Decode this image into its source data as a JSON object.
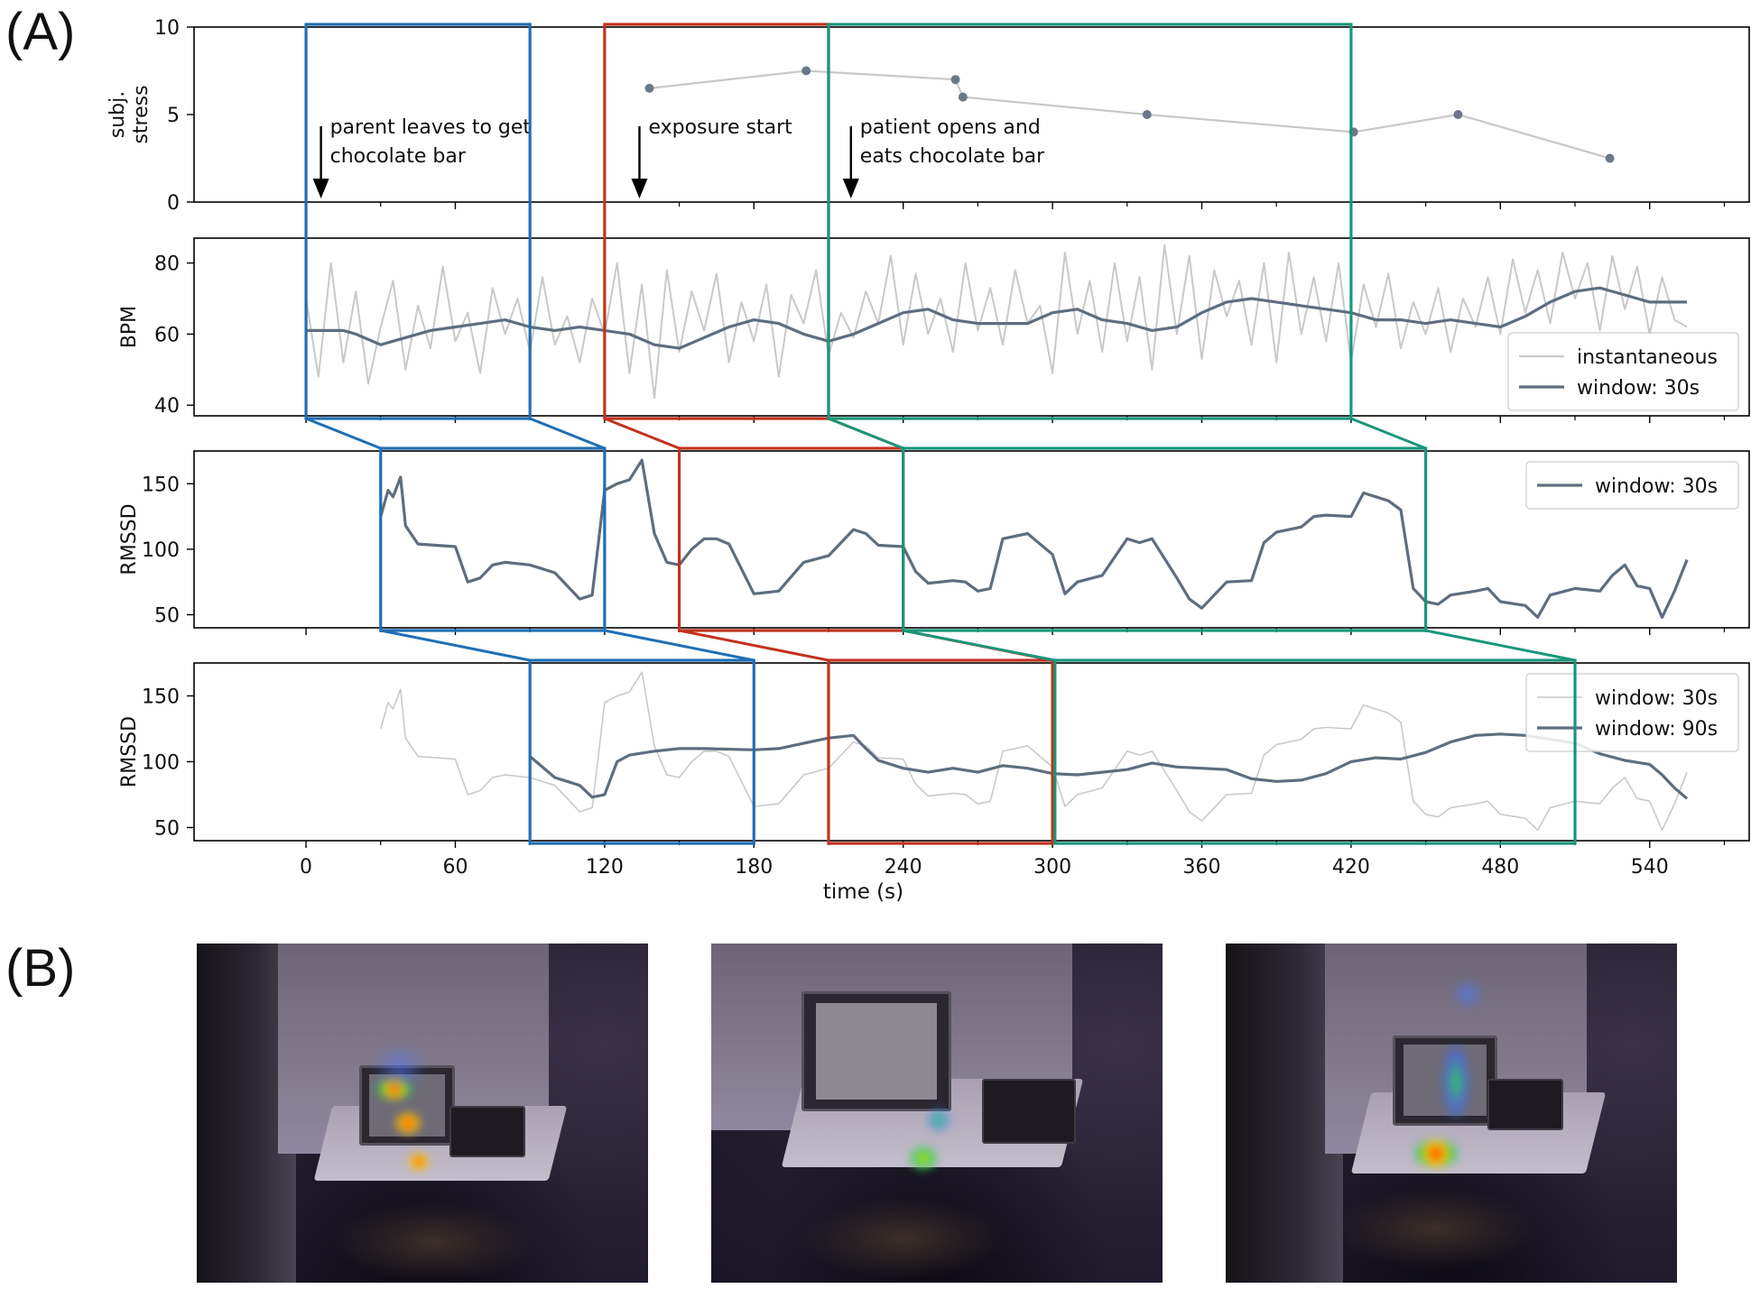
{
  "figure": {
    "panel_a_label": "(A)",
    "panel_b_label": "(B)"
  },
  "colors": {
    "blue": "#1f6fb4",
    "red": "#c2321f",
    "green": "#1a967a",
    "dark_line": "#5f6d7e",
    "light_line": "#c9c9c9",
    "stress_line": "#c8c8c8",
    "stress_point": "#6b7889"
  },
  "chart_data": [
    {
      "type": "line",
      "ylabel": "subj.\nstress",
      "ylim": [
        0,
        10
      ],
      "yticks": [
        0,
        5,
        10
      ],
      "xlim": [
        -45,
        580
      ],
      "series": [
        {
          "x": [
            138,
            201,
            261,
            264,
            338,
            421,
            463,
            524
          ],
          "values": [
            6.5,
            7.5,
            7.0,
            6.0,
            5.0,
            4.0,
            5.0,
            2.5
          ]
        }
      ],
      "annotations": [
        {
          "text": "parent leaves to get\nchocolate bar",
          "x": 6
        },
        {
          "text": "exposure start",
          "x": 134
        },
        {
          "text": "patient opens and\neats chocolate bar",
          "x": 219
        }
      ]
    },
    {
      "type": "line",
      "ylabel": "BPM",
      "ylim": [
        37,
        87
      ],
      "yticks": [
        40,
        60,
        80
      ],
      "xlim": [
        -45,
        580
      ],
      "legend": "right",
      "series": [
        {
          "name": "instantaneous",
          "x": [
            0,
            5,
            10,
            15,
            20,
            25,
            30,
            35,
            40,
            45,
            50,
            55,
            60,
            65,
            70,
            75,
            80,
            85,
            90,
            95,
            100,
            105,
            110,
            115,
            120,
            125,
            130,
            135,
            140,
            145,
            150,
            155,
            160,
            165,
            170,
            175,
            180,
            185,
            190,
            195,
            200,
            205,
            210,
            215,
            220,
            225,
            230,
            235,
            240,
            245,
            250,
            255,
            260,
            265,
            270,
            275,
            280,
            285,
            290,
            295,
            300,
            305,
            310,
            315,
            320,
            325,
            330,
            335,
            340,
            345,
            350,
            355,
            360,
            365,
            370,
            375,
            380,
            385,
            390,
            395,
            400,
            405,
            410,
            415,
            420,
            425,
            430,
            435,
            440,
            445,
            450,
            455,
            460,
            465,
            470,
            475,
            480,
            485,
            490,
            495,
            500,
            505,
            510,
            515,
            520,
            525,
            530,
            535,
            540,
            545,
            550,
            555
          ],
          "values": [
            70,
            48,
            80,
            52,
            72,
            46,
            62,
            75,
            50,
            68,
            56,
            79,
            58,
            66,
            49,
            73,
            60,
            70,
            55,
            76,
            57,
            65,
            52,
            70,
            60,
            80,
            49,
            74,
            42,
            78,
            55,
            72,
            61,
            77,
            52,
            69,
            58,
            74,
            48,
            71,
            63,
            78,
            54,
            66,
            59,
            72,
            63,
            82,
            57,
            77,
            60,
            70,
            55,
            80,
            61,
            73,
            57,
            78,
            63,
            68,
            49,
            83,
            60,
            75,
            55,
            80,
            58,
            76,
            50,
            85,
            60,
            82,
            53,
            78,
            65,
            75,
            57,
            80,
            52,
            83,
            60,
            76,
            58,
            80,
            52,
            74,
            62,
            77,
            56,
            69,
            60,
            73,
            55,
            70,
            62,
            76,
            60,
            81,
            66,
            78,
            63,
            83,
            70,
            80,
            61,
            82,
            67,
            79,
            60,
            76,
            64,
            62
          ]
        },
        {
          "name": "window: 30s",
          "x": [
            0,
            10,
            15,
            20,
            30,
            40,
            50,
            60,
            70,
            80,
            90,
            100,
            110,
            120,
            130,
            140,
            150,
            160,
            170,
            180,
            190,
            200,
            210,
            220,
            230,
            240,
            250,
            260,
            270,
            280,
            290,
            300,
            310,
            320,
            330,
            340,
            350,
            360,
            370,
            380,
            390,
            400,
            410,
            420,
            430,
            440,
            450,
            460,
            470,
            480,
            490,
            500,
            510,
            520,
            530,
            540,
            550,
            555
          ],
          "values": [
            61,
            61,
            61,
            60,
            57,
            59,
            61,
            62,
            63,
            64,
            62,
            61,
            62,
            61,
            60,
            57,
            56,
            59,
            62,
            64,
            63,
            60,
            58,
            60,
            63,
            66,
            67,
            64,
            63,
            63,
            63,
            66,
            67,
            64,
            63,
            61,
            62,
            66,
            69,
            70,
            69,
            68,
            67,
            66,
            64,
            64,
            63,
            64,
            63,
            62,
            65,
            69,
            72,
            73,
            71,
            69,
            69,
            69
          ]
        }
      ]
    },
    {
      "type": "line",
      "ylabel": "RMSSD",
      "ylim": [
        40,
        175
      ],
      "yticks": [
        50,
        100,
        150
      ],
      "xlim": [
        -45,
        580
      ],
      "legend": "top-right",
      "series": [
        {
          "name": "window: 30s",
          "x": [
            30,
            33,
            35,
            38,
            40,
            45,
            60,
            65,
            70,
            75,
            80,
            90,
            100,
            105,
            110,
            115,
            120,
            125,
            130,
            135,
            140,
            145,
            150,
            155,
            160,
            165,
            170,
            180,
            190,
            200,
            210,
            220,
            225,
            230,
            240,
            245,
            250,
            260,
            265,
            270,
            275,
            280,
            290,
            300,
            305,
            310,
            320,
            330,
            335,
            340,
            350,
            355,
            360,
            370,
            380,
            385,
            390,
            400,
            405,
            410,
            420,
            425,
            430,
            435,
            440,
            445,
            450,
            455,
            460,
            470,
            475,
            480,
            490,
            495,
            500,
            510,
            520,
            525,
            530,
            535,
            540,
            545,
            550,
            555
          ],
          "values": [
            125,
            145,
            140,
            155,
            118,
            104,
            102,
            75,
            78,
            88,
            90,
            88,
            82,
            72,
            62,
            65,
            145,
            150,
            153,
            168,
            112,
            90,
            88,
            100,
            108,
            108,
            104,
            66,
            68,
            90,
            95,
            115,
            112,
            103,
            102,
            83,
            74,
            76,
            75,
            68,
            70,
            108,
            112,
            96,
            66,
            75,
            80,
            108,
            105,
            108,
            78,
            62,
            55,
            75,
            76,
            105,
            113,
            117,
            125,
            126,
            125,
            143,
            140,
            137,
            130,
            70,
            60,
            58,
            65,
            68,
            70,
            60,
            57,
            48,
            65,
            70,
            68,
            80,
            88,
            72,
            70,
            48,
            68,
            92
          ]
        }
      ]
    },
    {
      "type": "line",
      "ylabel": "RMSSD",
      "ylim": [
        40,
        175
      ],
      "yticks": [
        50,
        100,
        150
      ],
      "xlabel": "time (s)",
      "xticks": [
        0,
        60,
        120,
        180,
        240,
        300,
        360,
        420,
        480,
        540
      ],
      "xlim": [
        -45,
        580
      ],
      "legend": "top-right",
      "series": [
        {
          "name": "window: 30s",
          "x": [
            30,
            33,
            35,
            38,
            40,
            45,
            60,
            65,
            70,
            75,
            80,
            90,
            100,
            105,
            110,
            115,
            120,
            125,
            130,
            135,
            140,
            145,
            150,
            155,
            160,
            165,
            170,
            180,
            190,
            200,
            210,
            220,
            225,
            230,
            240,
            245,
            250,
            260,
            265,
            270,
            275,
            280,
            290,
            300,
            305,
            310,
            320,
            330,
            335,
            340,
            350,
            355,
            360,
            370,
            380,
            385,
            390,
            400,
            405,
            410,
            420,
            425,
            430,
            435,
            440,
            445,
            450,
            455,
            460,
            470,
            475,
            480,
            490,
            495,
            500,
            510,
            520,
            525,
            530,
            535,
            540,
            545,
            550,
            555
          ],
          "values": [
            125,
            145,
            140,
            155,
            118,
            104,
            102,
            75,
            78,
            88,
            90,
            88,
            82,
            72,
            62,
            65,
            145,
            150,
            153,
            168,
            112,
            90,
            88,
            100,
            108,
            108,
            104,
            66,
            68,
            90,
            95,
            115,
            112,
            103,
            102,
            83,
            74,
            76,
            75,
            68,
            70,
            108,
            112,
            96,
            66,
            75,
            80,
            108,
            105,
            108,
            78,
            62,
            55,
            75,
            76,
            105,
            113,
            117,
            125,
            126,
            125,
            143,
            140,
            137,
            130,
            70,
            60,
            58,
            65,
            68,
            70,
            60,
            57,
            48,
            65,
            70,
            68,
            80,
            88,
            72,
            70,
            48,
            68,
            92
          ]
        },
        {
          "name": "window: 90s",
          "x": [
            90,
            100,
            105,
            110,
            115,
            120,
            125,
            130,
            140,
            150,
            160,
            180,
            190,
            200,
            210,
            220,
            225,
            230,
            240,
            250,
            260,
            270,
            280,
            290,
            300,
            310,
            320,
            330,
            340,
            350,
            360,
            370,
            380,
            390,
            400,
            410,
            420,
            430,
            440,
            450,
            460,
            470,
            480,
            490,
            500,
            510,
            520,
            530,
            540,
            545,
            550,
            555
          ],
          "values": [
            104,
            88,
            85,
            82,
            73,
            75,
            100,
            105,
            108,
            110,
            110,
            109,
            110,
            114,
            118,
            120,
            110,
            101,
            95,
            92,
            95,
            92,
            97,
            95,
            91,
            90,
            92,
            94,
            99,
            96,
            95,
            94,
            87,
            85,
            86,
            91,
            100,
            103,
            102,
            107,
            115,
            120,
            121,
            120,
            117,
            114,
            106,
            101,
            98,
            90,
            80,
            72
          ]
        }
      ]
    }
  ]
}
